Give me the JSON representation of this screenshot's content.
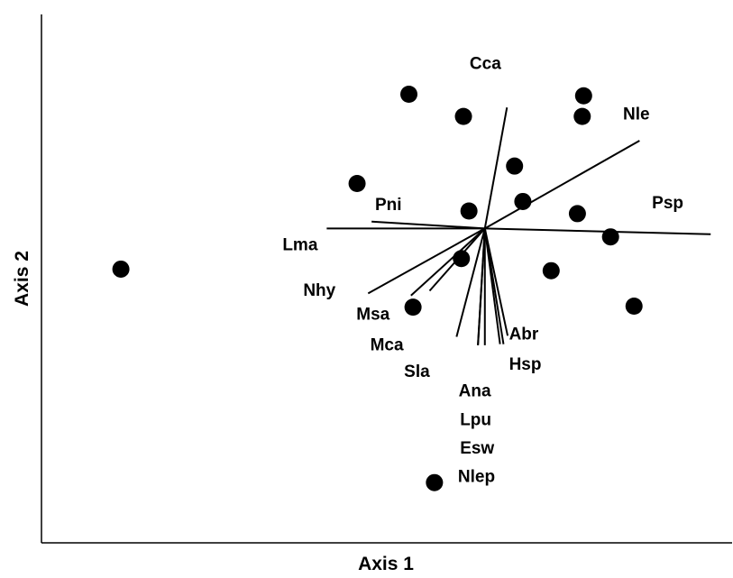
{
  "chart_data": {
    "type": "scatter",
    "title": "",
    "xlabel": "Axis 1",
    "ylabel": "Axis 2",
    "xlim": [
      0,
      100
    ],
    "ylim": [
      0,
      100
    ],
    "grid": false,
    "legend": "none",
    "marker_color": "#000000",
    "line_color": "#000000",
    "sites": [
      {
        "x": 11.5,
        "y": 51.8
      },
      {
        "x": 53.2,
        "y": 84.9
      },
      {
        "x": 61.1,
        "y": 80.7
      },
      {
        "x": 78.5,
        "y": 84.6
      },
      {
        "x": 78.3,
        "y": 80.7
      },
      {
        "x": 68.5,
        "y": 71.3
      },
      {
        "x": 45.7,
        "y": 68.0
      },
      {
        "x": 69.7,
        "y": 64.6
      },
      {
        "x": 61.9,
        "y": 62.8
      },
      {
        "x": 77.6,
        "y": 62.3
      },
      {
        "x": 82.4,
        "y": 57.9
      },
      {
        "x": 60.8,
        "y": 53.8
      },
      {
        "x": 73.8,
        "y": 51.5
      },
      {
        "x": 85.8,
        "y": 44.8
      },
      {
        "x": 53.8,
        "y": 44.6
      },
      {
        "x": 56.9,
        "y": 11.4
      }
    ],
    "origin": {
      "x": 64.2,
      "y": 59.5
    },
    "species": [
      {
        "name": "Cca",
        "x": 67.4,
        "y": 82.4
      },
      {
        "name": "Nle",
        "x": 86.6,
        "y": 76.1
      },
      {
        "name": "Psp",
        "x": 96.9,
        "y": 58.4
      },
      {
        "name": "Pni",
        "x": 47.8,
        "y": 60.8
      },
      {
        "name": "Lma",
        "x": 41.3,
        "y": 59.5
      },
      {
        "name": "Nhy",
        "x": 47.3,
        "y": 47.2
      },
      {
        "name": "Msa",
        "x": 53.5,
        "y": 46.8
      },
      {
        "name": "Mca",
        "x": 56.2,
        "y": 47.7
      },
      {
        "name": "Sla",
        "x": 60.1,
        "y": 39.0
      },
      {
        "name": "Ana",
        "x": 63.2,
        "y": 37.4
      },
      {
        "name": "Lpu",
        "x": 64.2,
        "y": 37.4
      },
      {
        "name": "Esw",
        "x": 66.9,
        "y": 37.6
      },
      {
        "name": "Hsp",
        "x": 66.4,
        "y": 37.6
      },
      {
        "name": "Nlep",
        "x": 63.2,
        "y": 37.4
      },
      {
        "name": "Abr",
        "x": 67.5,
        "y": 39.2
      }
    ],
    "labels": [
      {
        "text": "Cca",
        "x": 62.0,
        "y": 89.7
      },
      {
        "text": "Nle",
        "x": 84.2,
        "y": 80.1
      },
      {
        "text": "Psp",
        "x": 88.4,
        "y": 63.3
      },
      {
        "text": "Pni",
        "x": 48.3,
        "y": 63.0
      },
      {
        "text": "Lma",
        "x": 34.9,
        "y": 55.4
      },
      {
        "text": "Nhy",
        "x": 37.9,
        "y": 46.8
      },
      {
        "text": "Msa",
        "x": 45.6,
        "y": 42.2
      },
      {
        "text": "Mca",
        "x": 47.6,
        "y": 36.4
      },
      {
        "text": "Abr",
        "x": 67.7,
        "y": 38.5
      },
      {
        "text": "Sla",
        "x": 52.5,
        "y": 31.4
      },
      {
        "text": "Hsp",
        "x": 67.7,
        "y": 32.8
      },
      {
        "text": "Ana",
        "x": 60.4,
        "y": 27.7
      },
      {
        "text": "Lpu",
        "x": 60.6,
        "y": 22.3
      },
      {
        "text": "Esw",
        "x": 60.6,
        "y": 16.9
      },
      {
        "text": "Nlep",
        "x": 60.3,
        "y": 11.5
      }
    ]
  }
}
